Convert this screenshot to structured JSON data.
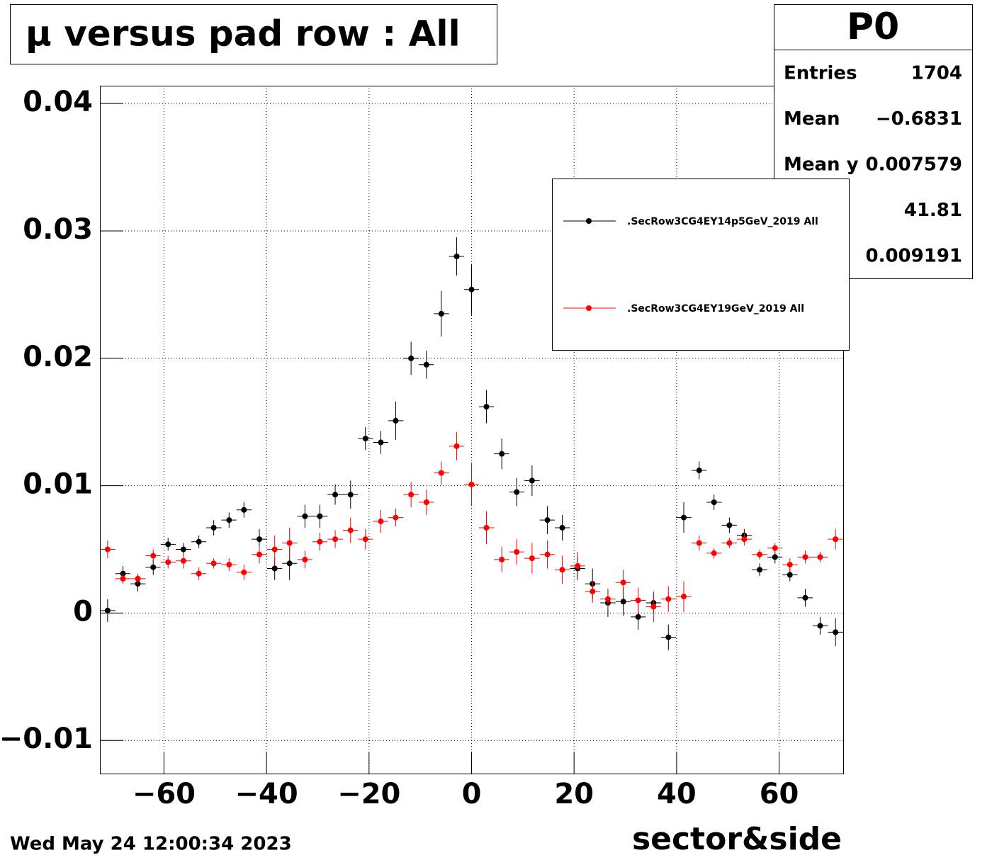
{
  "chart_data": {
    "type": "errorbar",
    "title": "μ versus pad row : All",
    "x_label": "sector&side",
    "timestamp": "Wed May 24 12:00:34 2023",
    "xlim": [
      -72.5,
      72.5
    ],
    "ylim": [
      -0.0126,
      0.0414
    ],
    "xticks": [
      {
        "value": -60,
        "label": "−60"
      },
      {
        "value": -40,
        "label": "−40"
      },
      {
        "value": -20,
        "label": "−20"
      },
      0,
      20,
      40,
      60
    ],
    "yticks": [
      {
        "value": -0.01,
        "label": "−0.01"
      },
      0,
      0.01,
      0.02,
      0.03,
      0.04
    ],
    "grid": true,
    "x": [
      -71.0,
      -68.0,
      -65.1,
      -62.1,
      -59.2,
      -56.2,
      -53.2,
      -50.3,
      -47.3,
      -44.4,
      -41.4,
      -38.4,
      -35.5,
      -32.5,
      -29.6,
      -26.6,
      -23.6,
      -20.7,
      -17.7,
      -14.8,
      -11.8,
      -8.8,
      -5.9,
      -2.9,
      0,
      2.9,
      5.9,
      8.8,
      11.8,
      14.8,
      17.7,
      20.7,
      23.6,
      26.6,
      29.6,
      32.5,
      35.5,
      38.4,
      41.4,
      44.4,
      47.3,
      50.3,
      53.2,
      56.2,
      59.2,
      62.1,
      65.1,
      68.0,
      71.0
    ],
    "series": [
      {
        "name": ".SecRow3CG4EY14p5GeV_2019 All",
        "color": "#000000",
        "values": [
          0.0002,
          0.0031,
          0.0023,
          0.0036,
          0.0054,
          0.005,
          0.0056,
          0.0067,
          0.0073,
          0.0081,
          0.0058,
          0.0035,
          0.0039,
          0.0076,
          0.0076,
          0.0093,
          0.0093,
          0.0137,
          0.0134,
          0.0151,
          0.02,
          0.0195,
          0.0235,
          0.028,
          0.0254,
          0.0162,
          0.0125,
          0.0095,
          0.0104,
          0.0073,
          0.0067,
          0.0035,
          0.0023,
          0.0008,
          0.0009,
          -0.0003,
          0.0008,
          -0.0019,
          0.0075,
          0.0112,
          0.0087,
          0.0069,
          0.0061,
          0.0034,
          0.0044,
          0.003,
          0.0012,
          -0.001,
          -0.0015
        ],
        "errors": [
          0.0009,
          0.0006,
          0.0006,
          0.0006,
          0.0005,
          0.0005,
          0.0005,
          0.0006,
          0.0006,
          0.0006,
          0.0008,
          0.0009,
          0.0013,
          0.0009,
          0.0009,
          0.0008,
          0.0011,
          0.0009,
          0.0009,
          0.0015,
          0.0013,
          0.0011,
          0.0018,
          0.0015,
          0.002,
          0.0013,
          0.0012,
          0.0011,
          0.0012,
          0.0011,
          0.001,
          0.0009,
          0.0012,
          0.0011,
          0.0011,
          0.001,
          0.0008,
          0.001,
          0.0012,
          0.0007,
          0.0006,
          0.0006,
          0.0005,
          0.0005,
          0.0005,
          0.0005,
          0.0007,
          0.0007,
          0.0011
        ]
      },
      {
        "name": ".SecRow3CG4EY19GeV_2019 All",
        "color": "#ff0000",
        "values": [
          0.005,
          0.0027,
          0.0027,
          0.0045,
          0.004,
          0.0041,
          0.0031,
          0.0039,
          0.0038,
          0.0032,
          0.0046,
          0.005,
          0.0055,
          0.0042,
          0.0056,
          0.0058,
          0.0065,
          0.0058,
          0.0072,
          0.0075,
          0.0093,
          0.0087,
          0.011,
          0.0131,
          0.0101,
          0.0067,
          0.0042,
          0.0048,
          0.0043,
          0.0046,
          0.0034,
          0.0037,
          0.0017,
          0.0011,
          0.0024,
          0.001,
          0.0005,
          0.0011,
          0.0013,
          0.0055,
          0.0047,
          0.0055,
          0.0058,
          0.0046,
          0.0051,
          0.0038,
          0.0044,
          0.0044,
          0.0058
        ],
        "errors": [
          0.0007,
          0.0004,
          0.0004,
          0.0005,
          0.0005,
          0.0006,
          0.0005,
          0.0004,
          0.0005,
          0.0006,
          0.0007,
          0.0011,
          0.0012,
          0.0007,
          0.0007,
          0.0007,
          0.001,
          0.0008,
          0.0009,
          0.0007,
          0.001,
          0.001,
          0.0009,
          0.0011,
          0.0017,
          0.0013,
          0.001,
          0.001,
          0.0012,
          0.0011,
          0.0011,
          0.0011,
          0.0009,
          0.0008,
          0.001,
          0.001,
          0.0012,
          0.001,
          0.0012,
          0.0006,
          0.0004,
          0.0004,
          0.0005,
          0.0004,
          0.0004,
          0.0005,
          0.0005,
          0.0004,
          0.0008
        ]
      }
    ],
    "stats": {
      "title": "P0",
      "rows": [
        {
          "label": "Entries",
          "value": "1704"
        },
        {
          "label": "Mean",
          "value": "−0.6831"
        },
        {
          "label": "Mean y",
          "value": "0.007579"
        },
        {
          "value": "41.81"
        },
        {
          "value": "0.009191"
        }
      ]
    }
  }
}
